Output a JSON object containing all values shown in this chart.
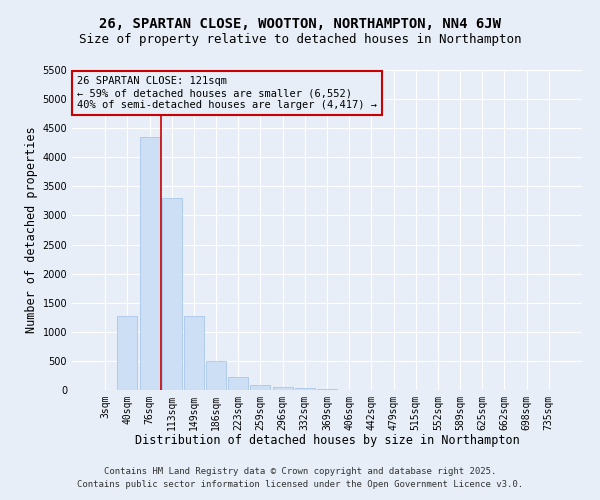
{
  "title": "26, SPARTAN CLOSE, WOOTTON, NORTHAMPTON, NN4 6JW",
  "subtitle": "Size of property relative to detached houses in Northampton",
  "xlabel": "Distribution of detached houses by size in Northampton",
  "ylabel": "Number of detached properties",
  "categories": [
    "3sqm",
    "40sqm",
    "76sqm",
    "113sqm",
    "149sqm",
    "186sqm",
    "223sqm",
    "259sqm",
    "296sqm",
    "332sqm",
    "369sqm",
    "406sqm",
    "442sqm",
    "479sqm",
    "515sqm",
    "552sqm",
    "589sqm",
    "625sqm",
    "662sqm",
    "698sqm",
    "735sqm"
  ],
  "values": [
    0,
    1270,
    4350,
    3300,
    1280,
    500,
    215,
    90,
    55,
    40,
    20,
    0,
    0,
    0,
    0,
    0,
    0,
    0,
    0,
    0,
    0
  ],
  "bar_color": "#ccdff5",
  "bar_edge_color": "#a8c8e8",
  "vline_x_index": 2.5,
  "vline_color": "#cc0000",
  "annotation_text": "26 SPARTAN CLOSE: 121sqm\n← 59% of detached houses are smaller (6,552)\n40% of semi-detached houses are larger (4,417) →",
  "annotation_box_color": "#cc0000",
  "ylim": [
    0,
    5500
  ],
  "yticks": [
    0,
    500,
    1000,
    1500,
    2000,
    2500,
    3000,
    3500,
    4000,
    4500,
    5000,
    5500
  ],
  "background_color": "#e8eef8",
  "plot_bg_color": "#e8eef8",
  "grid_color": "#ffffff",
  "footer1": "Contains HM Land Registry data © Crown copyright and database right 2025.",
  "footer2": "Contains public sector information licensed under the Open Government Licence v3.0.",
  "title_fontsize": 10,
  "subtitle_fontsize": 9,
  "xlabel_fontsize": 8.5,
  "ylabel_fontsize": 8.5,
  "tick_fontsize": 7,
  "annotation_fontsize": 7.5,
  "footer_fontsize": 6.5
}
